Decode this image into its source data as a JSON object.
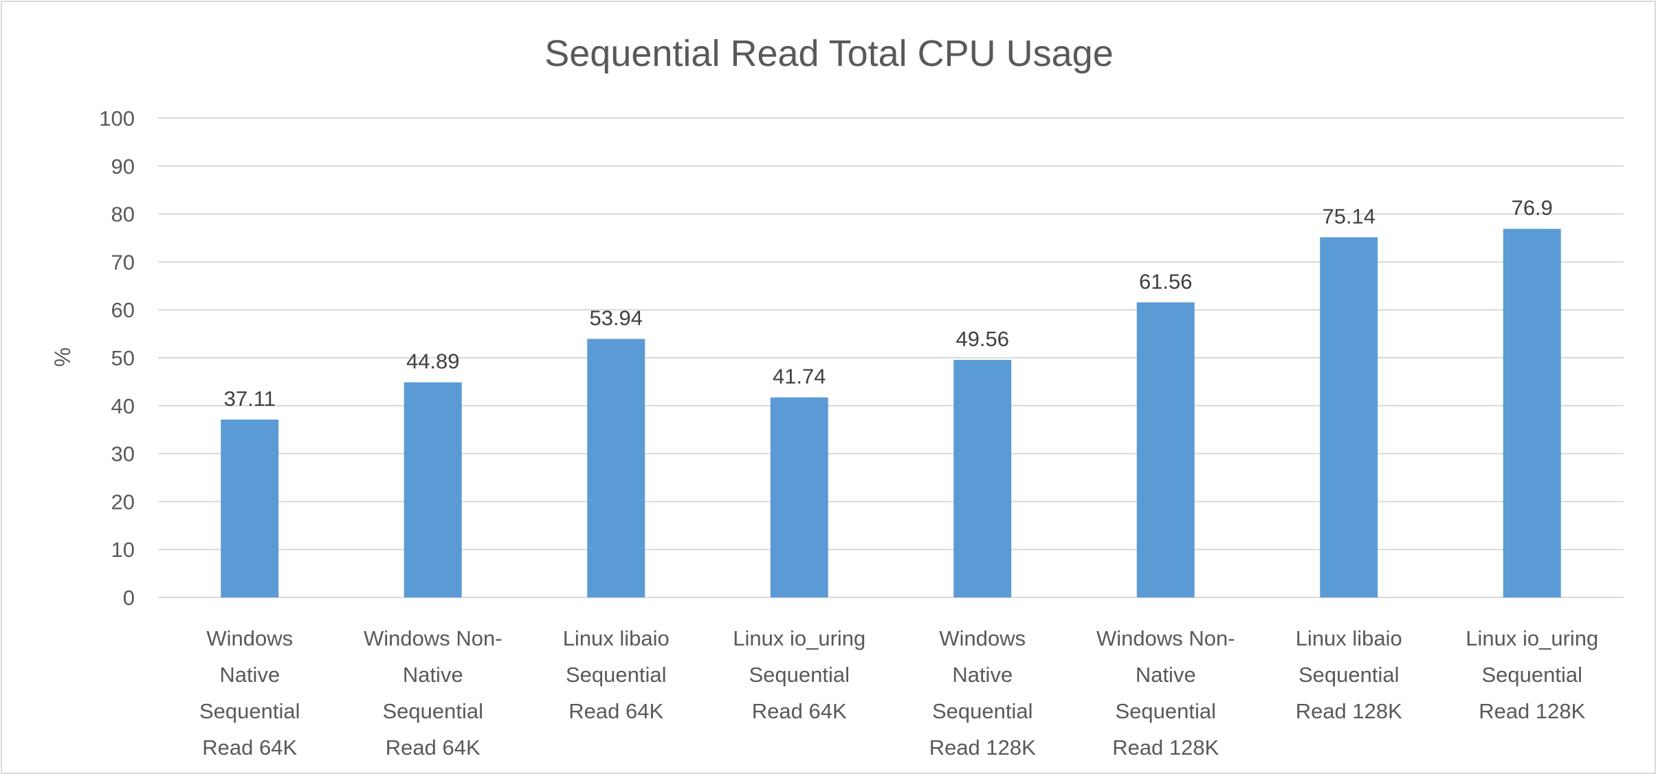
{
  "chart_data": {
    "type": "bar",
    "title": "Sequential Read Total CPU Usage",
    "xlabel": "",
    "ylabel": "%",
    "ylim": [
      0,
      100
    ],
    "yticks": [
      0,
      10,
      20,
      30,
      40,
      50,
      60,
      70,
      80,
      90,
      100
    ],
    "grid": true,
    "legend": "none",
    "bar_color": "#5B9BD5",
    "categories": [
      [
        "Windows",
        "Native",
        "Sequential",
        "Read 64K"
      ],
      [
        "Windows Non-",
        "Native",
        "Sequential",
        "Read 64K"
      ],
      [
        "Linux libaio",
        "Sequential",
        "Read 64K"
      ],
      [
        "Linux io_uring",
        "Sequential",
        "Read 64K"
      ],
      [
        "Windows",
        "Native",
        "Sequential",
        "Read 128K"
      ],
      [
        "Windows Non-",
        "Native",
        "Sequential",
        "Read 128K"
      ],
      [
        "Linux libaio",
        "Sequential",
        "Read 128K"
      ],
      [
        "Linux io_uring",
        "Sequential",
        "Read 128K"
      ]
    ],
    "values": [
      37.11,
      44.89,
      53.94,
      41.74,
      49.56,
      61.56,
      75.14,
      76.9
    ],
    "data_labels": [
      "37.11",
      "44.89",
      "53.94",
      "41.74",
      "49.56",
      "61.56",
      "75.14",
      "76.9"
    ]
  }
}
